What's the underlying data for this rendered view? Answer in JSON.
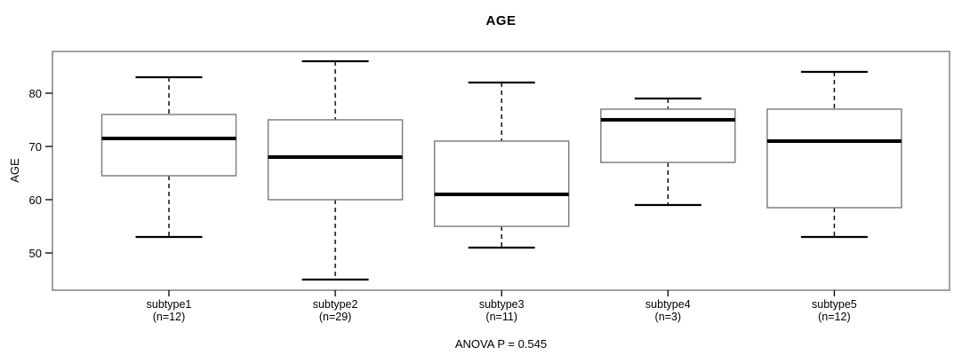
{
  "figure": {
    "title": "AGE",
    "annotation": "ANOVA P = 0.545"
  },
  "chart_data": {
    "type": "boxplot",
    "title": "AGE",
    "xlabel": "",
    "ylabel": "AGE",
    "yticks": [
      50,
      60,
      70,
      80
    ],
    "ylim": [
      43,
      88
    ],
    "grid": false,
    "annotation": "ANOVA P = 0.545",
    "categories": [
      "subtype1",
      "subtype2",
      "subtype3",
      "subtype4",
      "subtype5"
    ],
    "series": [
      {
        "name": "subtype1",
        "n": 12,
        "min": 53,
        "q1": 64.5,
        "median": 71.5,
        "q3": 76,
        "max": 83
      },
      {
        "name": "subtype2",
        "n": 29,
        "min": 45,
        "q1": 60,
        "median": 68,
        "q3": 75,
        "max": 86
      },
      {
        "name": "subtype3",
        "n": 11,
        "min": 51,
        "q1": 55,
        "median": 61,
        "q3": 71,
        "max": 82
      },
      {
        "name": "subtype4",
        "n": 3,
        "min": 59,
        "q1": 67,
        "median": 75,
        "q3": 77,
        "max": 79
      },
      {
        "name": "subtype5",
        "n": 12,
        "min": 53,
        "q1": 58.5,
        "median": 71,
        "q3": 77,
        "max": 84
      }
    ],
    "colors": {
      "frame": "#808080",
      "box_border": "#808080",
      "box_fill": "#ffffff",
      "median": "#000000",
      "whisker": "#000000",
      "tick": "#000000",
      "text": "#000000",
      "background": "#ffffff"
    }
  }
}
